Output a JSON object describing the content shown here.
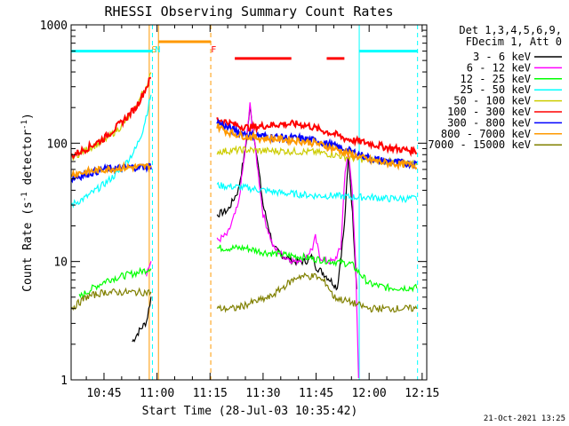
{
  "chart_data": {
    "type": "line",
    "title": "RHESSI Observing Summary Count Rates",
    "xlabel": "Start Time (28-Jul-03 10:35:42)",
    "ylabel_main": "Count Rate (s",
    "ylabel_sup1": "-1",
    "ylabel_mid": " detector",
    "ylabel_sup2": "-1",
    "ylabel_end": ")",
    "yscale": "log",
    "ylim": [
      1,
      1000
    ],
    "xlim": [
      35.7,
      136.3
    ],
    "x_unit": "minutes after 10:00",
    "x_ticks": [
      {
        "x": 45,
        "label": "10:45"
      },
      {
        "x": 60,
        "label": "11:00"
      },
      {
        "x": 75,
        "label": "11:15"
      },
      {
        "x": 90,
        "label": "11:30"
      },
      {
        "x": 105,
        "label": "11:45"
      },
      {
        "x": 120,
        "label": "12:00"
      },
      {
        "x": 135,
        "label": "12:15"
      }
    ],
    "y_ticks": [
      {
        "y": 1,
        "label": "1"
      },
      {
        "y": 10,
        "label": "10"
      },
      {
        "y": 100,
        "label": "100"
      },
      {
        "y": 1000,
        "label": "1000"
      }
    ],
    "legend_header": [
      "Det 1,3,4,5,6,9,",
      "FDecim 1, Att 0"
    ],
    "legend_position": "right",
    "timestamp": "21-Oct-2021 13:25",
    "flag_labels": [
      {
        "text": "S",
        "x": 59.2,
        "color": "#ff9900"
      },
      {
        "text": "N",
        "x": 60.2,
        "color": "#00ffff"
      },
      {
        "text": "F",
        "x": 76.0,
        "color": "#ff0000"
      }
    ],
    "markers": {
      "night_start": 57.8,
      "night_end": 117.2,
      "saa_start": 59.6,
      "saa_end": 75.2,
      "solid_cyan": [
        35.7,
        117.2
      ],
      "dashed_cyan": [
        58.7,
        133.7
      ],
      "solid_orange": 60.4,
      "dashed_orange": 75.2
    },
    "flag_bars": [
      {
        "name": "night",
        "color": "#00ffff",
        "y": 600,
        "segments": [
          [
            35.7,
            58.7
          ],
          [
            117.2,
            133.7
          ]
        ]
      },
      {
        "name": "saa",
        "color": "#ff9900",
        "y": 720,
        "segments": [
          [
            60.4,
            75.2
          ]
        ]
      },
      {
        "name": "flare",
        "color": "#ff0000",
        "y": 520,
        "segments": [
          [
            82,
            98
          ],
          [
            108,
            113
          ]
        ]
      }
    ],
    "series": [
      {
        "name": "3 - 6 keV",
        "color": "#000000",
        "points": [
          [
            53,
            2.1
          ],
          [
            55,
            2.6
          ],
          [
            57,
            3.1
          ],
          [
            58.3,
            5
          ],
          [
            77,
            25
          ],
          [
            80,
            27
          ],
          [
            83,
            40
          ],
          [
            85,
            90
          ],
          [
            86.3,
            200
          ],
          [
            88,
            90
          ],
          [
            90,
            30
          ],
          [
            93,
            13
          ],
          [
            96,
            11
          ],
          [
            99,
            10
          ],
          [
            102,
            10
          ],
          [
            104,
            11
          ],
          [
            105,
            9
          ],
          [
            107,
            8
          ],
          [
            109,
            7
          ],
          [
            111,
            6
          ],
          [
            113,
            20
          ],
          [
            114.2,
            80
          ],
          [
            115.3,
            25
          ],
          [
            116.5,
            6
          ]
        ]
      },
      {
        "name": "6 - 12 keV",
        "color": "#ff00ff",
        "points": [
          [
            57,
            8
          ],
          [
            58.3,
            10
          ],
          [
            77,
            15
          ],
          [
            80,
            17
          ],
          [
            83,
            30
          ],
          [
            85,
            90
          ],
          [
            86.3,
            210
          ],
          [
            88,
            80
          ],
          [
            90,
            25
          ],
          [
            93,
            13
          ],
          [
            96,
            11
          ],
          [
            99,
            10
          ],
          [
            102,
            11
          ],
          [
            104,
            13
          ],
          [
            104.8,
            16
          ],
          [
            106,
            11
          ],
          [
            108,
            10
          ],
          [
            110,
            10
          ],
          [
            112,
            13
          ],
          [
            113.2,
            60
          ],
          [
            114.2,
            80
          ],
          [
            115.2,
            40
          ],
          [
            116.2,
            10
          ],
          [
            117,
            1
          ]
        ]
      },
      {
        "name": "12 - 25 keV",
        "color": "#00ff00",
        "points": [
          [
            38,
            5
          ],
          [
            42,
            6
          ],
          [
            46,
            7
          ],
          [
            50,
            7.5
          ],
          [
            54,
            8
          ],
          [
            57,
            8.5
          ],
          [
            58.3,
            9
          ],
          [
            77,
            13
          ],
          [
            85,
            13
          ],
          [
            90,
            12
          ],
          [
            95,
            11.5
          ],
          [
            100,
            11
          ],
          [
            105,
            10.5
          ],
          [
            110,
            10
          ],
          [
            115,
            9.5
          ],
          [
            120,
            6.5
          ],
          [
            125,
            6
          ],
          [
            130,
            6
          ],
          [
            133.5,
            6
          ]
        ]
      },
      {
        "name": "25 - 50 keV",
        "color": "#00ffff",
        "points": [
          [
            35.7,
            30
          ],
          [
            40,
            35
          ],
          [
            45,
            45
          ],
          [
            50,
            60
          ],
          [
            54,
            90
          ],
          [
            56,
            130
          ],
          [
            57.5,
            200
          ],
          [
            58.3,
            260
          ],
          [
            77,
            44
          ],
          [
            85,
            42
          ],
          [
            90,
            40
          ],
          [
            95,
            38
          ],
          [
            100,
            37
          ],
          [
            105,
            36
          ],
          [
            110,
            36
          ],
          [
            115,
            35
          ],
          [
            120,
            35
          ],
          [
            125,
            34
          ],
          [
            130,
            34
          ],
          [
            133.5,
            34
          ]
        ]
      },
      {
        "name": "50 - 100 keV",
        "color": "#cccc00",
        "points": [
          [
            35.7,
            75
          ],
          [
            40,
            88
          ],
          [
            45,
            105
          ],
          [
            50,
            140
          ],
          [
            54,
            200
          ],
          [
            56,
            270
          ],
          [
            57.5,
            330
          ],
          [
            58.3,
            380
          ],
          [
            77,
            85
          ],
          [
            85,
            88
          ],
          [
            90,
            86
          ],
          [
            95,
            86
          ],
          [
            100,
            85
          ],
          [
            105,
            84
          ],
          [
            110,
            80
          ],
          [
            115,
            75
          ],
          [
            120,
            72
          ],
          [
            125,
            70
          ],
          [
            130,
            68
          ],
          [
            133.5,
            67
          ]
        ]
      },
      {
        "name": "100 - 300 keV",
        "color": "#ff0000",
        "points": [
          [
            35.7,
            78
          ],
          [
            40,
            90
          ],
          [
            45,
            110
          ],
          [
            50,
            150
          ],
          [
            54,
            200
          ],
          [
            56,
            260
          ],
          [
            57.5,
            320
          ],
          [
            58.3,
            360
          ],
          [
            77,
            160
          ],
          [
            80,
            150
          ],
          [
            83,
            140
          ],
          [
            86,
            135
          ],
          [
            90,
            140
          ],
          [
            95,
            145
          ],
          [
            100,
            145
          ],
          [
            103,
            140
          ],
          [
            106,
            130
          ],
          [
            110,
            120
          ],
          [
            113,
            110
          ],
          [
            116,
            105
          ],
          [
            120,
            100
          ],
          [
            125,
            92
          ],
          [
            130,
            88
          ],
          [
            133.5,
            86
          ]
        ]
      },
      {
        "name": "300 - 800 keV",
        "color": "#0000ff",
        "points": [
          [
            35.7,
            50
          ],
          [
            40,
            55
          ],
          [
            45,
            60
          ],
          [
            50,
            62
          ],
          [
            55,
            63
          ],
          [
            58.3,
            64
          ],
          [
            77,
            150
          ],
          [
            80,
            135
          ],
          [
            83,
            125
          ],
          [
            86,
            118
          ],
          [
            90,
            115
          ],
          [
            95,
            112
          ],
          [
            100,
            110
          ],
          [
            105,
            105
          ],
          [
            110,
            95
          ],
          [
            115,
            85
          ],
          [
            120,
            75
          ],
          [
            125,
            70
          ],
          [
            130,
            68
          ],
          [
            133.5,
            67
          ]
        ]
      },
      {
        "name": "800 - 7000 keV",
        "color": "#ff9900",
        "points": [
          [
            35.7,
            55
          ],
          [
            40,
            57
          ],
          [
            45,
            60
          ],
          [
            50,
            62
          ],
          [
            55,
            63
          ],
          [
            58.3,
            64
          ],
          [
            77,
            140
          ],
          [
            80,
            125
          ],
          [
            83,
            118
          ],
          [
            86,
            113
          ],
          [
            90,
            110
          ],
          [
            95,
            108
          ],
          [
            100,
            105
          ],
          [
            105,
            100
          ],
          [
            110,
            90
          ],
          [
            115,
            80
          ],
          [
            120,
            72
          ],
          [
            125,
            68
          ],
          [
            130,
            66
          ],
          [
            133.5,
            65
          ]
        ]
      },
      {
        "name": "7000 - 15000 keV",
        "color": "#808000",
        "points": [
          [
            35.7,
            4
          ],
          [
            38,
            4.5
          ],
          [
            40,
            5
          ],
          [
            45,
            5.5
          ],
          [
            50,
            5.5
          ],
          [
            55,
            5.5
          ],
          [
            58.3,
            5.5
          ],
          [
            77,
            4
          ],
          [
            82,
            4
          ],
          [
            87,
            4.5
          ],
          [
            92,
            5
          ],
          [
            97,
            6.5
          ],
          [
            100,
            7.5
          ],
          [
            105,
            7.5
          ],
          [
            108,
            6.5
          ],
          [
            110,
            5
          ],
          [
            115,
            4.5
          ],
          [
            120,
            4
          ],
          [
            125,
            4
          ],
          [
            130,
            4
          ],
          [
            133.5,
            4
          ]
        ]
      }
    ]
  }
}
